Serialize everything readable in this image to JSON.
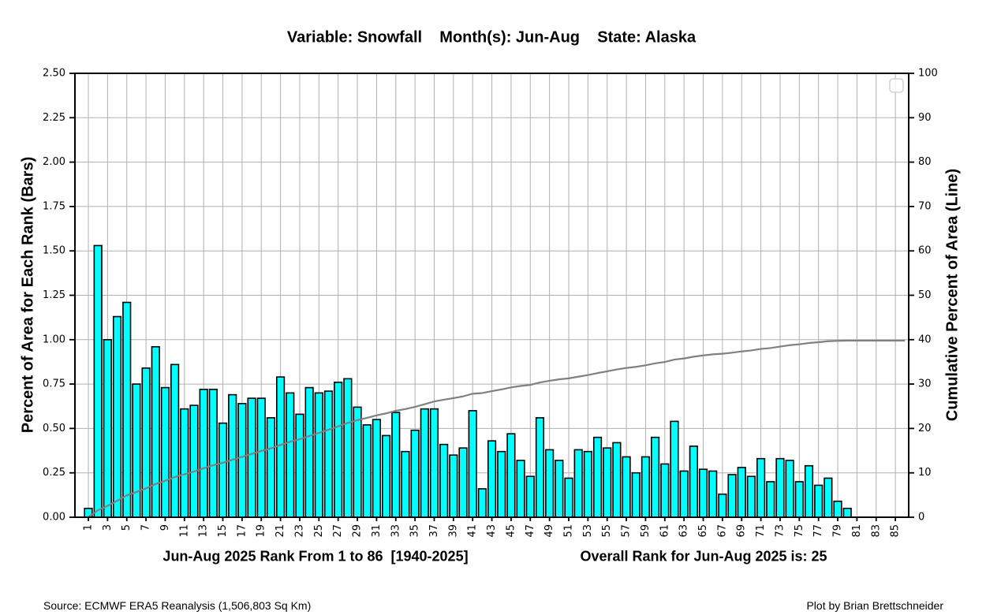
{
  "title": "Variable: Snowfall    Month(s): Jun-Aug    State: Alaska",
  "left_axis": {
    "label": "Percent of Area for Each Rank (Bars)",
    "tick_labels": [
      "0.00",
      "0.25",
      "0.50",
      "0.75",
      "1.00",
      "1.25",
      "1.50",
      "1.75",
      "2.00",
      "2.25",
      "2.50"
    ],
    "min": 0,
    "max": 2.5
  },
  "right_axis": {
    "label": "Cumulative Percent of Area (Line)",
    "tick_labels": [
      "0",
      "10",
      "20",
      "30",
      "40",
      "50",
      "60",
      "70",
      "80",
      "90",
      "100"
    ],
    "min": 0,
    "max": 100
  },
  "x_axis": {
    "tick_labels": [
      "1",
      "3",
      "5",
      "7",
      "9",
      "11",
      "13",
      "15",
      "17",
      "19",
      "21",
      "23",
      "25",
      "27",
      "29",
      "31",
      "33",
      "35",
      "37",
      "39",
      "41",
      "43",
      "45",
      "47",
      "49",
      "51",
      "53",
      "55",
      "57",
      "59",
      "61",
      "63",
      "65",
      "67",
      "69",
      "71",
      "73",
      "75",
      "77",
      "79",
      "81",
      "83",
      "85"
    ],
    "caption_left": "Jun-Aug 2025 Rank From 1 to 86  [1940-2025]",
    "caption_right": "Overall Rank for Jun-Aug 2025 is: 25"
  },
  "footer": {
    "source": "Source: ECMWF ERA5 Reanalysis (1,506,803 Sq Km)",
    "credit": "Plot by Brian Brettschneider"
  },
  "colors": {
    "bar_fill": "#00FFFF",
    "bar_edge": "#000000",
    "line": "#808080",
    "grid": "#b0b0b0",
    "spine": "#000000",
    "legend_border": "#cccccc"
  },
  "chart_data": {
    "type": "bar",
    "title": "Variable: Snowfall    Month(s): Jun-Aug    State: Alaska",
    "x_range": [
      1,
      86
    ],
    "xlabel": "Jun-Aug 2025 Rank From 1 to 86  [1940-2025]",
    "annotation": "Overall Rank for Jun-Aug 2025 is: 25",
    "overall_rank": 25,
    "ylabel_left": "Percent of Area for Each Rank (Bars)",
    "ylabel_right": "Cumulative Percent of Area (Line)",
    "ylim_left": [
      0,
      2.5
    ],
    "ylim_right": [
      0,
      100
    ],
    "grid": true,
    "series": [
      {
        "name": "Percent of Area for Each Rank (Bars)",
        "type": "bar",
        "axis": "left",
        "values": [
          0.05,
          1.53,
          1.0,
          1.13,
          1.21,
          0.75,
          0.84,
          0.96,
          0.73,
          0.86,
          0.61,
          0.63,
          0.72,
          0.72,
          0.53,
          0.69,
          0.64,
          0.67,
          0.67,
          0.56,
          0.79,
          0.7,
          0.58,
          0.73,
          0.7,
          0.71,
          0.76,
          0.78,
          0.62,
          0.52,
          0.55,
          0.46,
          0.59,
          0.37,
          0.49,
          0.61,
          0.61,
          0.41,
          0.35,
          0.39,
          0.6,
          0.16,
          0.43,
          0.37,
          0.47,
          0.32,
          0.23,
          0.56,
          0.38,
          0.32,
          0.22,
          0.38,
          0.37,
          0.45,
          0.39,
          0.42,
          0.34,
          0.25,
          0.34,
          0.45,
          0.3,
          0.54,
          0.26,
          0.4,
          0.27,
          0.26,
          0.13,
          0.24,
          0.28,
          0.23,
          0.33,
          0.2,
          0.33,
          0.32,
          0.2,
          0.29,
          0.18,
          0.22,
          0.09,
          0.05,
          0,
          0,
          0,
          0,
          0,
          0
        ]
      },
      {
        "name": "Cumulative Percent of Area (Line)",
        "type": "line",
        "axis": "right",
        "values": [
          0.05,
          1.58,
          2.58,
          3.71,
          4.92,
          5.67,
          6.51,
          7.47,
          8.2,
          9.06,
          9.67,
          10.3,
          11.02,
          11.74,
          12.27,
          12.96,
          13.6,
          14.27,
          14.94,
          15.5,
          16.29,
          16.99,
          17.57,
          18.3,
          19.0,
          19.71,
          20.47,
          21.25,
          21.87,
          22.39,
          22.94,
          23.4,
          23.99,
          24.36,
          24.85,
          25.46,
          26.07,
          26.48,
          26.83,
          27.22,
          27.82,
          27.98,
          28.41,
          28.78,
          29.25,
          29.57,
          29.8,
          30.36,
          30.74,
          31.06,
          31.28,
          31.66,
          32.03,
          32.48,
          32.87,
          33.29,
          33.63,
          33.88,
          34.22,
          34.67,
          34.97,
          35.51,
          35.77,
          36.17,
          36.44,
          36.7,
          36.83,
          37.07,
          37.35,
          37.58,
          37.91,
          38.11,
          38.44,
          38.76,
          38.96,
          39.25,
          39.43,
          39.65,
          39.74,
          39.79,
          39.79,
          39.79,
          39.79,
          39.79,
          39.79,
          39.79
        ]
      }
    ]
  }
}
